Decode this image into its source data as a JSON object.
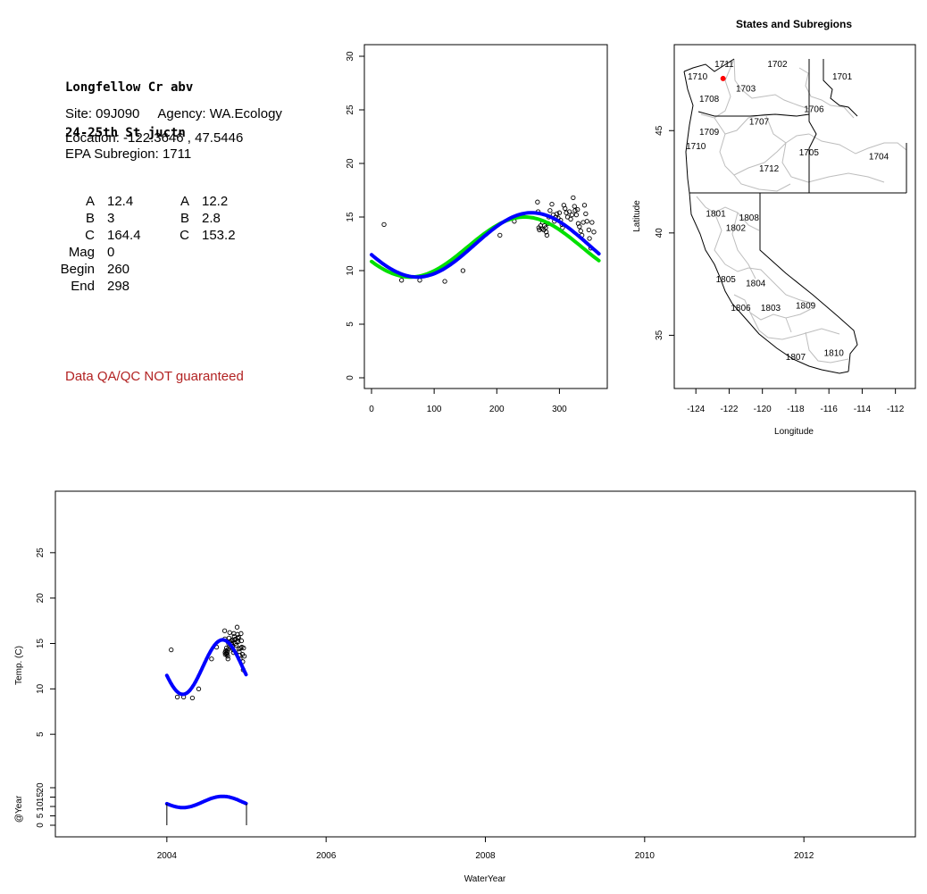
{
  "info": {
    "title_line1": "Longfellow Cr abv",
    "title_line2": "24-25th St juctn",
    "site_agency": "Site: 09J090     Agency: WA.Ecology",
    "location": "Location: -122.3646 , 47.5446",
    "subregion": "EPA Subregion: 1711",
    "params_left": [
      {
        "label": "A",
        "value": "12.4"
      },
      {
        "label": "B",
        "value": "3"
      },
      {
        "label": "C",
        "value": "164.4"
      },
      {
        "label": "Mag",
        "value": "0"
      },
      {
        "label": "Begin",
        "value": "260"
      },
      {
        "label": "End",
        "value": "298"
      }
    ],
    "params_right": [
      {
        "label": "A",
        "value": "12.2"
      },
      {
        "label": "B",
        "value": "2.8"
      },
      {
        "label": "C",
        "value": "153.2"
      }
    ],
    "qa_note": "Data QA/QC NOT guaranteed"
  },
  "colors": {
    "fit_blue": "#0000ff",
    "fit_green": "#00e000",
    "site_marker": "#ff0000",
    "boundary": "#bdbdbd"
  },
  "chart_data": [
    {
      "type": "scatter",
      "title": "",
      "xlabel": "",
      "ylabel": "",
      "xlim": [
        0,
        365
      ],
      "ylim": [
        0,
        30
      ],
      "xticks": [
        0,
        100,
        200,
        300
      ],
      "yticks": [
        0,
        5,
        10,
        15,
        20,
        25,
        30
      ],
      "points": [
        [
          20,
          14.3
        ],
        [
          48,
          9.1
        ],
        [
          77,
          9.1
        ],
        [
          117,
          9.0
        ],
        [
          146,
          10.0
        ],
        [
          205,
          13.3
        ],
        [
          228,
          14.6
        ],
        [
          265,
          16.4
        ],
        [
          266,
          15.5
        ],
        [
          267,
          14.0
        ],
        [
          268,
          13.8
        ],
        [
          270,
          14.2
        ],
        [
          272,
          13.9
        ],
        [
          273,
          14.5
        ],
        [
          275,
          13.8
        ],
        [
          276,
          14.2
        ],
        [
          278,
          14.0
        ],
        [
          279,
          13.6
        ],
        [
          280,
          13.3
        ],
        [
          282,
          14.4
        ],
        [
          283,
          15.0
        ],
        [
          285,
          15.6
        ],
        [
          288,
          16.2
        ],
        [
          290,
          15.2
        ],
        [
          292,
          14.6
        ],
        [
          294,
          15.0
        ],
        [
          296,
          15.3
        ],
        [
          298,
          14.9
        ],
        [
          300,
          15.4
        ],
        [
          302,
          14.7
        ],
        [
          304,
          14.3
        ],
        [
          305,
          14.0
        ],
        [
          307,
          16.1
        ],
        [
          309,
          15.8
        ],
        [
          311,
          15.4
        ],
        [
          313,
          15.0
        ],
        [
          316,
          15.5
        ],
        [
          318,
          14.8
        ],
        [
          320,
          15.2
        ],
        [
          322,
          16.8
        ],
        [
          324,
          16.0
        ],
        [
          325,
          15.6
        ],
        [
          327,
          15.2
        ],
        [
          329,
          15.7
        ],
        [
          330,
          14.4
        ],
        [
          332,
          14.1
        ],
        [
          334,
          13.7
        ],
        [
          336,
          13.3
        ],
        [
          338,
          14.5
        ],
        [
          340,
          16.1
        ],
        [
          342,
          15.3
        ],
        [
          344,
          14.6
        ],
        [
          347,
          13.8
        ],
        [
          348,
          13.0
        ],
        [
          350,
          12.1
        ],
        [
          352,
          14.5
        ],
        [
          355,
          13.6
        ]
      ],
      "series": [
        {
          "color": "#00e000",
          "A": 12.2,
          "B": 2.8,
          "C": 153.2
        },
        {
          "color": "#0000ff",
          "A": 12.4,
          "B": 3,
          "C": 164.4
        }
      ]
    },
    {
      "type": "map",
      "title": "States and Subregions",
      "xlabel": "Longitude",
      "ylabel": "Latitude",
      "xlim": [
        -125.3,
        -110.8
      ],
      "ylim": [
        32.4,
        49.2
      ],
      "xticks": [
        -124,
        -122,
        -120,
        -118,
        -116,
        -114,
        -112
      ],
      "yticks": [
        35,
        40,
        45
      ],
      "regions": [
        {
          "label": "1702",
          "lon": -119.1,
          "lat": 48.1
        },
        {
          "label": "1701",
          "lon": -115.2,
          "lat": 47.5
        },
        {
          "label": "1711",
          "lon": -122.3,
          "lat": 48.1
        },
        {
          "label": "1710",
          "lon": -123.9,
          "lat": 47.5
        },
        {
          "label": "1703",
          "lon": -121.0,
          "lat": 46.9
        },
        {
          "label": "1708",
          "lon": -123.2,
          "lat": 46.4
        },
        {
          "label": "1706",
          "lon": -116.9,
          "lat": 45.9
        },
        {
          "label": "1707",
          "lon": -120.2,
          "lat": 45.3
        },
        {
          "label": "1709",
          "lon": -123.2,
          "lat": 44.8
        },
        {
          "label": "1710",
          "lon": -124.0,
          "lat": 44.1
        },
        {
          "label": "1705",
          "lon": -117.2,
          "lat": 43.8
        },
        {
          "label": "1704",
          "lon": -113.0,
          "lat": 43.6
        },
        {
          "label": "1712",
          "lon": -119.6,
          "lat": 43.0
        },
        {
          "label": "1801",
          "lon": -122.8,
          "lat": 40.8
        },
        {
          "label": "1808",
          "lon": -120.8,
          "lat": 40.6
        },
        {
          "label": "1802",
          "lon": -121.6,
          "lat": 40.1
        },
        {
          "label": "1805",
          "lon": -122.2,
          "lat": 37.6
        },
        {
          "label": "1804",
          "lon": -120.4,
          "lat": 37.4
        },
        {
          "label": "1806",
          "lon": -121.3,
          "lat": 36.2
        },
        {
          "label": "1803",
          "lon": -119.5,
          "lat": 36.2
        },
        {
          "label": "1809",
          "lon": -117.4,
          "lat": 36.3
        },
        {
          "label": "1807",
          "lon": -118.0,
          "lat": 33.8
        },
        {
          "label": "1810",
          "lon": -115.7,
          "lat": 34.0
        }
      ],
      "site": {
        "lon": -122.3646,
        "lat": 47.5446
      }
    },
    {
      "type": "line",
      "title": "",
      "xlabel": "WaterYear",
      "ylabel": "Temp. (C)",
      "ylabel2": "@Year",
      "xlim": [
        2002.6,
        2013.4
      ],
      "ylim": [
        0,
        30
      ],
      "xticks": [
        2004,
        2006,
        2008,
        2010,
        2012
      ],
      "yticks": [
        5,
        10,
        15,
        20,
        25
      ],
      "yticks2": [
        0,
        5,
        10,
        15,
        20
      ],
      "wy_start": 2004,
      "wy_end": 2005
    }
  ]
}
